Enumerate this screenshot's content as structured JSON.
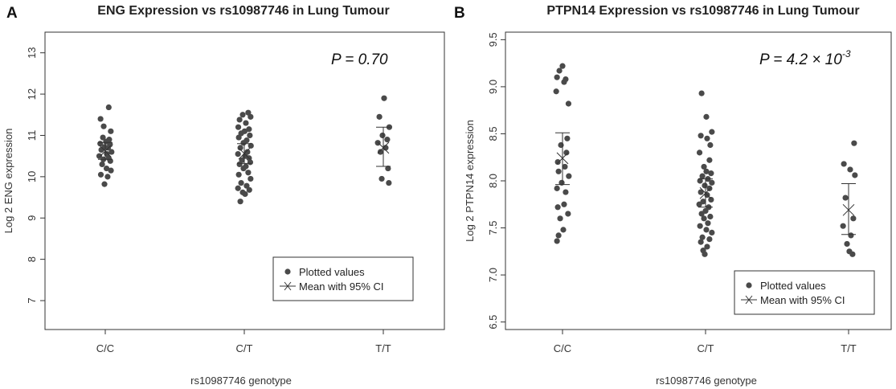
{
  "chart_data": [
    {
      "type": "scatter",
      "panel_label": "A",
      "title": "ENG Expression vs rs10987746 in Lung Tumour",
      "xlabel": "rs10987746 genotype",
      "ylabel": "Log 2 ENG expression",
      "categories": [
        "C/C",
        "C/T",
        "T/T"
      ],
      "ylim": [
        6.3,
        13.5
      ],
      "yticks": [
        "7",
        "8",
        "9",
        "10",
        "11",
        "12",
        "13"
      ],
      "p_value": {
        "prefix": "P = 0.70",
        "exponent": ""
      },
      "legend": {
        "points": "Plotted values",
        "mean": "Mean with 95% CI",
        "placement": "bottom-right"
      },
      "series": [
        {
          "name": "C/C",
          "values": [
            11.68,
            11.4,
            11.22,
            11.1,
            10.95,
            10.9,
            10.85,
            10.8,
            10.78,
            10.72,
            10.7,
            10.65,
            10.6,
            10.55,
            10.5,
            10.45,
            10.42,
            10.38,
            10.3,
            10.2,
            10.15,
            10.05,
            10.0,
            9.82
          ],
          "jitter": [
            0.22,
            -0.3,
            -0.1,
            0.35,
            -0.15,
            0.25,
            0.05,
            -0.32,
            0.3,
            -0.05,
            0.18,
            -0.25,
            0.4,
            0.1,
            -0.38,
            0.22,
            -0.12,
            0.32,
            -0.2,
            0.08,
            0.36,
            -0.28,
            0.15,
            -0.05
          ],
          "mean": 10.62,
          "ci": [
            10.42,
            10.83
          ]
        },
        {
          "name": "C/T",
          "values": [
            11.55,
            11.5,
            11.45,
            11.38,
            11.3,
            11.2,
            11.15,
            11.1,
            11.05,
            11.0,
            10.95,
            10.88,
            10.82,
            10.75,
            10.7,
            10.6,
            10.55,
            10.5,
            10.45,
            10.4,
            10.35,
            10.3,
            10.25,
            10.2,
            10.1,
            10.05,
            9.95,
            9.85,
            9.78,
            9.72,
            9.68,
            9.62,
            9.58,
            9.4
          ],
          "jitter": [
            0.25,
            -0.1,
            0.4,
            -0.3,
            0.1,
            -0.38,
            0.3,
            0.02,
            -0.2,
            0.35,
            -0.35,
            0.15,
            -0.05,
            0.42,
            -0.25,
            0.2,
            -0.4,
            0.05,
            0.3,
            -0.15,
            0.38,
            -0.3,
            0.1,
            -0.05,
            0.25,
            -0.35,
            0.4,
            -0.2,
            0.15,
            -0.4,
            0.32,
            -0.1,
            0.05,
            -0.25
          ],
          "mean": 10.56,
          "ci": [
            10.32,
            10.8
          ]
        },
        {
          "name": "T/T",
          "values": [
            11.9,
            11.45,
            11.2,
            11.0,
            10.9,
            10.82,
            10.7,
            10.6,
            10.2,
            9.95,
            9.85
          ],
          "jitter": [
            0.05,
            -0.25,
            0.38,
            -0.05,
            0.25,
            -0.35,
            0.15,
            -0.18,
            0.3,
            -0.1,
            0.35
          ],
          "mean": 10.7,
          "ci": [
            10.25,
            11.2
          ]
        }
      ]
    },
    {
      "type": "scatter",
      "panel_label": "B",
      "title": "PTPN14 Expression vs rs10987746 in Lung Tumour",
      "xlabel": "rs10987746 genotype",
      "ylabel": "Log 2 PTPN14 expression",
      "categories": [
        "C/C",
        "C/T",
        "T/T"
      ],
      "ylim": [
        6.42,
        9.58
      ],
      "yticks": [
        "6.5",
        "7.0",
        "7.5",
        "8.0",
        "8.5",
        "9.0",
        "9.5"
      ],
      "p_value": {
        "prefix": "P = 4.2 × 10",
        "exponent": "-3"
      },
      "legend": {
        "points": "Plotted values",
        "mean": "Mean with 95% CI",
        "placement": "bottom-right"
      },
      "series": [
        {
          "name": "C/C",
          "values": [
            9.22,
            9.17,
            9.1,
            9.08,
            9.05,
            8.95,
            8.82,
            8.45,
            8.38,
            8.3,
            8.2,
            8.15,
            8.1,
            8.05,
            7.98,
            7.92,
            7.88,
            7.75,
            7.72,
            7.65,
            7.6,
            7.48,
            7.42,
            7.36
          ],
          "jitter": [
            0.0,
            -0.2,
            -0.35,
            0.2,
            0.1,
            -0.4,
            0.38,
            0.3,
            -0.1,
            0.25,
            -0.3,
            0.15,
            -0.25,
            0.4,
            -0.05,
            -0.35,
            0.2,
            0.1,
            -0.3,
            0.35,
            -0.15,
            0.05,
            -0.25,
            -0.35
          ],
          "mean": 8.24,
          "ci": [
            7.96,
            8.51
          ]
        },
        {
          "name": "C/T",
          "values": [
            8.93,
            8.68,
            8.52,
            8.48,
            8.45,
            8.38,
            8.3,
            8.22,
            8.15,
            8.1,
            8.08,
            8.05,
            8.02,
            8.0,
            7.98,
            7.95,
            7.92,
            7.88,
            7.85,
            7.8,
            7.78,
            7.75,
            7.72,
            7.68,
            7.65,
            7.62,
            7.6,
            7.55,
            7.52,
            7.48,
            7.45,
            7.4,
            7.38,
            7.35,
            7.3,
            7.26,
            7.22
          ],
          "jitter": [
            -0.25,
            0.05,
            0.4,
            -0.3,
            0.1,
            0.3,
            -0.38,
            0.25,
            -0.1,
            0.05,
            0.35,
            -0.2,
            0.15,
            -0.35,
            0.4,
            -0.05,
            0.25,
            -0.3,
            0.1,
            0.35,
            -0.15,
            -0.4,
            0.2,
            0.0,
            -0.25,
            0.3,
            -0.1,
            0.15,
            -0.35,
            0.05,
            0.4,
            -0.2,
            0.25,
            -0.3,
            0.1,
            -0.15,
            -0.05
          ],
          "mean": 7.87,
          "ci": [
            7.72,
            8.02
          ]
        },
        {
          "name": "T/T",
          "values": [
            8.4,
            8.18,
            8.12,
            8.06,
            7.82,
            7.6,
            7.52,
            7.42,
            7.33,
            7.25,
            7.22
          ],
          "jitter": [
            0.35,
            -0.3,
            0.1,
            0.4,
            -0.2,
            0.3,
            -0.35,
            0.15,
            -0.1,
            0.05,
            0.25
          ],
          "mean": 7.69,
          "ci": [
            7.43,
            7.97
          ]
        }
      ]
    }
  ]
}
